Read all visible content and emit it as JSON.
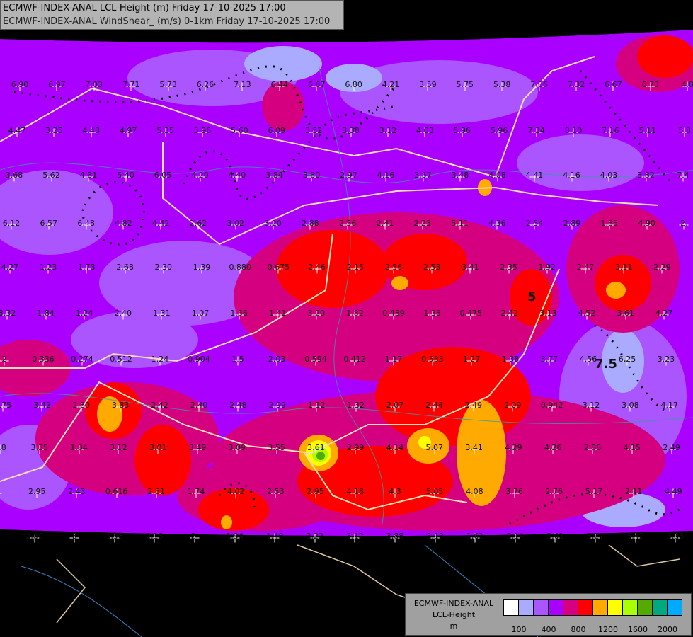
{
  "title": {
    "line1": "ECMWF-INDEX-ANAL LCL-Height (m) Friday 17-10-2025 17:00",
    "line2": "ECMWF-INDEX-ANAL WindShear_ (m/s) 0-1km Friday 17-10-2025 17:00"
  },
  "contour_labels": [
    "5",
    "7.5"
  ],
  "legend": {
    "line1": "ECMWF-INDEX-ANAL",
    "line2": "LCL-Height",
    "line3": "m",
    "colors": [
      "#ffffff",
      "#aaaaff",
      "#aa55ff",
      "#aa00ff",
      "#d40080",
      "#ff0000",
      "#ffaa00",
      "#ffff00",
      "#aaff00",
      "#55aa00",
      "#00aa80",
      "#00aaff"
    ],
    "ticks": [
      "100",
      "400",
      "800",
      "1200",
      "1600",
      "2000"
    ]
  },
  "windshear_values": [
    [
      "6.90",
      "6.97",
      "7.03",
      "7.71",
      "5.73",
      "6.26",
      "7.13",
      "6.44",
      "6.67",
      "6.80",
      "4.21",
      "3.59",
      "5.75",
      "5.38",
      "7.06",
      "7.32",
      "6.67",
      "6.73",
      "4.8"
    ],
    [
      "4.47",
      "3.25",
      "4.48",
      "4.97",
      "5.35",
      "5.96",
      "5.60",
      "6.09",
      "3.52",
      "3.38",
      "3.12",
      "4.03",
      "5.96",
      "5.96",
      "7.34",
      "8.10",
      "7.16",
      "5.11",
      "5.8"
    ],
    [
      "3.68",
      "5.62",
      "4.81",
      "5.40",
      "6.05",
      "4.20",
      "4.40",
      "3.84",
      "3.80",
      "2.97",
      "4.16",
      "3.57",
      "3.48",
      "4.08",
      "4.41",
      "4.16",
      "4.03",
      "3.82",
      "7.4"
    ],
    [
      "6.12",
      "6.57",
      "6.48",
      "4.82",
      "4.42",
      "2.62",
      "3.02",
      "3.20",
      "2.88",
      "2.56",
      "2.41",
      "2.23",
      "5.11",
      "4.36",
      "2.54",
      "2.89",
      "1.85",
      "4.90",
      "2."
    ],
    [
      "4.27",
      "1.23",
      "1.73",
      "2.68",
      "2.30",
      "1.39",
      "0.880",
      "0.675",
      "2.46",
      "2.15",
      "2.56",
      "2.53",
      "3.41",
      "2.35",
      "1.92",
      "2.47",
      "3.11",
      "2.29"
    ],
    [
      "3.32",
      "1.84",
      "1.24",
      "2.40",
      "1.31",
      "1.07",
      "1.56",
      "1.41",
      "3.20",
      "1.82",
      "0.439",
      "1.33",
      "0.475",
      "2.42",
      "3.13",
      "4.52",
      "3.61",
      "4.27"
    ],
    [
      "2",
      "0.336",
      "0.274",
      "0.512",
      "1.24",
      "0.904",
      "1.5",
      "2.03",
      "0.594",
      "0.412",
      "1.17",
      "0.533",
      "1.27",
      "1.38",
      "3.77",
      "4.56",
      "6.25",
      "3.23"
    ],
    [
      "3.75",
      "3.42",
      "2.80",
      "3.83",
      "2.42",
      "2.40",
      "2.48",
      "2.99",
      "1.12",
      "1.32",
      "2.07",
      "2.44",
      "2.49",
      "2.09",
      "0.942",
      "3.12",
      "3.08",
      "4.17"
    ],
    [
      "3.8",
      "3.35",
      "1.84",
      "3.12",
      "3.01",
      "3.49",
      "3.09",
      "3.55",
      "3.61",
      "2.99",
      "4.14",
      "5.07",
      "3.41",
      "4.29",
      "4.26",
      "2.88",
      "4.15",
      "2.49"
    ],
    [
      "0",
      "2.95",
      "2.43",
      "0.616",
      "2.51",
      "1.74",
      "4.02",
      "2.53",
      "2.95",
      "4.18",
      "4.3",
      "5.05",
      "4.08",
      "3.76",
      "2.76",
      "5.17",
      "2.11",
      "4.49"
    ],
    [
      "6",
      "2.89",
      "8",
      "1.98",
      "2.18",
      "2.",
      "1.94",
      "1.48",
      "3.22",
      "3.12",
      "3.88",
      "3.13",
      "1.61",
      "3.14",
      "5.01",
      "5.27",
      "5.42",
      "3.38"
    ]
  ]
}
